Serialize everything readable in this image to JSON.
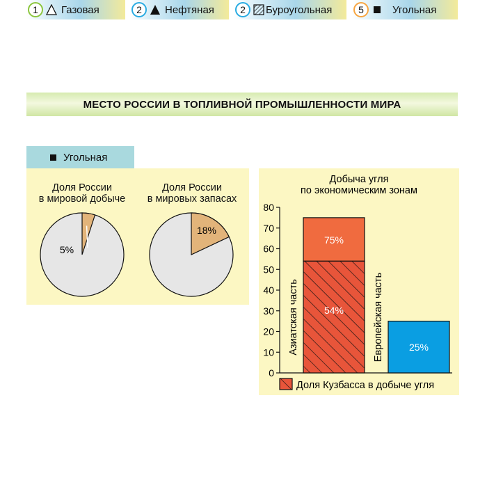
{
  "header": {
    "title": "МЕСТО РОССИИ В ТОПЛИВНОЙ ПРОМЫШЛЕННОСТИ МИРА"
  },
  "legend": [
    {
      "number": "1",
      "icon": "open-triangle-icon",
      "label": "Газовая",
      "badge_color": "#8cc63f"
    },
    {
      "number": "2",
      "icon": "filled-triangle-icon",
      "label": "Нефтяная",
      "badge_color": "#29abe2"
    },
    {
      "number": "2",
      "icon": "hatched-square-icon",
      "label": "Буроугольная",
      "badge_color": "#29abe2"
    },
    {
      "number": "5",
      "icon": "filled-square-icon",
      "label": "Угольная",
      "badge_color": "#f7a541"
    }
  ],
  "tab": {
    "label": "Угольная",
    "icon": "filled-square-icon"
  },
  "colors": {
    "pie_base": "#e6e6e6",
    "pie_share": "#e2b47a",
    "bar_hatched": "#e8553a",
    "bar_top": "#f06b3f",
    "bar_europe": "#0a9ee2",
    "panel": "#fcf7c3"
  },
  "chart_data": [
    {
      "type": "pie",
      "title": "Доля России в мировой добыче",
      "title_lines": [
        "Доля России",
        "в мировой добыче"
      ],
      "slices": [
        {
          "label": "5%",
          "value": 5
        },
        {
          "label": "",
          "value": 95
        }
      ]
    },
    {
      "type": "pie",
      "title": "Доля России в мировых запасах",
      "title_lines": [
        "Доля России",
        "в мировых запасах"
      ],
      "slices": [
        {
          "label": "18%",
          "value": 18
        },
        {
          "label": "",
          "value": 82
        }
      ]
    },
    {
      "type": "bar",
      "title": "Добыча угля по экономическим зонам",
      "title_lines": [
        "Добыча угля",
        "по экономическим зонам"
      ],
      "categories": [
        "Азиатская часть",
        "Европейская часть"
      ],
      "values": [
        75,
        25
      ],
      "value_labels": [
        "75%",
        "25%"
      ],
      "hatched_value": 54,
      "hatched_label": "54%",
      "ylim": [
        0,
        80
      ],
      "yticks": [
        0,
        10,
        20,
        30,
        40,
        50,
        60,
        70,
        80
      ],
      "legend": "Доля Кузбасса в добыче угля"
    }
  ]
}
